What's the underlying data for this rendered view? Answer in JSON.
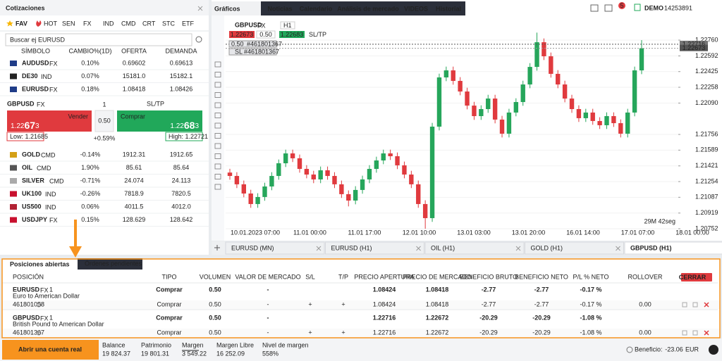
{
  "sidebar": {
    "title": "Cotizaciones",
    "tabs": [
      "FAV",
      "HOT",
      "SEN",
      "FX",
      "IND",
      "CMD",
      "CRT",
      "STC",
      "ETF"
    ],
    "search": "Buscar ej EURUSD",
    "columns": [
      "SÍMBOLO",
      "CAMBIO%(1D)",
      "OFERTA",
      "DEMANDA"
    ],
    "rows_top": [
      {
        "symbol": "AUDUSD",
        "market": "FX",
        "change": "0.10%",
        "bid": "0.69602",
        "ask": "0.69613"
      },
      {
        "symbol": "DE30",
        "market": "IND",
        "change": "0.07%",
        "bid": "15181.0",
        "ask": "15182.1"
      },
      {
        "symbol": "EURUSD",
        "market": "FX",
        "change": "0.18%",
        "bid": "1.08418",
        "ask": "1.08426"
      }
    ],
    "ticket": {
      "symbol": "GBPUSD",
      "market": "FX",
      "qty": "1",
      "sltp": "SL/TP",
      "sell_label": "Vender",
      "sell_price": [
        "1.22",
        "67",
        "3"
      ],
      "volume": "0.50",
      "buy_label": "Comprar",
      "buy_price": [
        "1.22",
        "68",
        "3"
      ],
      "change": "+0.59%",
      "low": "Low: 1.21685",
      "high": "High: 1.22721"
    },
    "rows_bottom": [
      {
        "symbol": "GOLD",
        "market": "CMD",
        "change": "-0.14%",
        "bid": "1912.31",
        "ask": "1912.65"
      },
      {
        "symbol": "OIL",
        "market": "CMD",
        "change": "1.90%",
        "bid": "85.61",
        "ask": "85.64"
      },
      {
        "symbol": "SILVER",
        "market": "CMD",
        "change": "-0.71%",
        "bid": "24.074",
        "ask": "24.113"
      },
      {
        "symbol": "UK100",
        "market": "IND",
        "change": "-0.26%",
        "bid": "7818.9",
        "ask": "7820.5"
      },
      {
        "symbol": "US500",
        "market": "IND",
        "change": "0.06%",
        "bid": "4011.5",
        "ask": "4012.0"
      },
      {
        "symbol": "USDJPY",
        "market": "FX",
        "change": "0.15%",
        "bid": "128.629",
        "ask": "128.642"
      }
    ]
  },
  "nav": {
    "charts": "Gráficos",
    "items": [
      "Noticias",
      "Calendario",
      "Análisis de mercado",
      "VIDEOS",
      "Historial"
    ],
    "badge": "5",
    "account_type": "DEMO",
    "account_id": "14253891"
  },
  "chart_data": {
    "type": "candlestick",
    "symbol": "GBPUSD",
    "market": "FX",
    "timeframe": "H1",
    "sell": "1.22673",
    "volume": "0.50",
    "buy": "1.22683",
    "sltp": "SL/TP",
    "order_volume": "0.50",
    "order_id": "#461801367",
    "sl_label": "SL",
    "sl_id": "#461801367",
    "timer": "29M 42seg",
    "up_color": "#26a65b",
    "down_color": "#e03a3e",
    "ylim": [
      1.2064,
      1.22925
    ],
    "yticks": [
      {
        "value": 1.2276,
        "label": "1.22760"
      },
      {
        "value": 1.22592,
        "label": "1.22592"
      },
      {
        "value": 1.22425,
        "label": "1.22425"
      },
      {
        "value": 1.22258,
        "label": "1.22258"
      },
      {
        "value": 1.2209,
        "label": "1.22090"
      },
      {
        "value": 1.21756,
        "label": "1.21756"
      },
      {
        "value": 1.21589,
        "label": "1.21589"
      },
      {
        "value": 1.21421,
        "label": "1.21421"
      },
      {
        "value": 1.21254,
        "label": "1.21254"
      },
      {
        "value": 1.21087,
        "label": "1.21087"
      },
      {
        "value": 1.20919,
        "label": "1.20919"
      },
      {
        "value": 1.20752,
        "label": "1.20752"
      }
    ],
    "open_price": {
      "value": 1.22716,
      "label": "1.22716"
    },
    "current_price": {
      "value": 1.22673,
      "label": "1.22673"
    },
    "xticks": [
      "10.01.2023 07:00",
      "11.01 00:00",
      "11.01 17:00",
      "12.01 10:00",
      "13.01 03:00",
      "13.01 20:00",
      "16.01 14:00",
      "17.01 07:00",
      "18.01 00:00"
    ],
    "candles": [
      [
        1.2135,
        1.2139,
        1.21274,
        1.21314
      ],
      [
        1.21314,
        1.21354,
        1.21185,
        1.21225
      ],
      [
        1.21225,
        1.21265,
        1.21087,
        1.21127
      ],
      [
        1.21127,
        1.21167,
        1.20975,
        1.21015
      ],
      [
        1.21015,
        1.2113,
        1.20975,
        1.2109
      ],
      [
        1.2109,
        1.21242,
        1.2105,
        1.21202
      ],
      [
        1.21202,
        1.21354,
        1.21162,
        1.21314
      ],
      [
        1.21314,
        1.21489,
        1.21274,
        1.21449
      ],
      [
        1.21449,
        1.21594,
        1.21409,
        1.21554
      ],
      [
        1.21554,
        1.21594,
        1.21462,
        1.21502
      ],
      [
        1.21502,
        1.21542,
        1.21349,
        1.21389
      ],
      [
        1.21389,
        1.21429,
        1.21289,
        1.21329
      ],
      [
        1.21329,
        1.21369,
        1.21237,
        1.21277
      ],
      [
        1.21277,
        1.21414,
        1.21237,
        1.21374
      ],
      [
        1.21374,
        1.21414,
        1.21274,
        1.21314
      ],
      [
        1.21314,
        1.21354,
        1.21185,
        1.21225
      ],
      [
        1.21225,
        1.21265,
        1.2108,
        1.2112
      ],
      [
        1.2112,
        1.2116,
        1.2099,
        1.21052
      ],
      [
        1.21052,
        1.21205,
        1.21012,
        1.21165
      ],
      [
        1.21165,
        1.21317,
        1.21125,
        1.21277
      ],
      [
        1.21277,
        1.21429,
        1.21237,
        1.21389
      ],
      [
        1.21389,
        1.21519,
        1.21349,
        1.21479
      ],
      [
        1.21479,
        1.21594,
        1.21439,
        1.21554
      ],
      [
        1.21554,
        1.21594,
        1.21484,
        1.21524
      ],
      [
        1.21524,
        1.21564,
        1.21387,
        1.21427
      ],
      [
        1.21427,
        1.21467,
        1.21289,
        1.21329
      ],
      [
        1.21329,
        1.21369,
        1.21185,
        1.21225
      ],
      [
        1.21225,
        1.21265,
        1.20975,
        1.21015
      ],
      [
        1.21015,
        1.21055,
        1.20752,
        1.20865
      ],
      [
        1.20865,
        1.21879,
        1.20825,
        1.21839
      ],
      [
        1.21839,
        1.22403,
        1.21799,
        1.22363
      ],
      [
        1.22363,
        1.22478,
        1.22323,
        1.22438
      ],
      [
        1.22438,
        1.22478,
        1.22286,
        1.22326
      ],
      [
        1.22326,
        1.22366,
        1.22173,
        1.22213
      ],
      [
        1.22213,
        1.22253,
        1.22023,
        1.22063
      ],
      [
        1.22063,
        1.22103,
        1.21911,
        1.21951
      ],
      [
        1.21951,
        1.22066,
        1.21911,
        1.22026
      ],
      [
        1.22026,
        1.22178,
        1.21986,
        1.22138
      ],
      [
        1.22138,
        1.22178,
        1.21874,
        1.21914
      ],
      [
        1.21914,
        1.21954,
        1.21724,
        1.21764
      ],
      [
        1.21764,
        1.22029,
        1.21724,
        1.21989
      ],
      [
        1.21989,
        1.22141,
        1.21949,
        1.22101
      ],
      [
        1.22101,
        1.22328,
        1.22061,
        1.22288
      ],
      [
        1.22288,
        1.22515,
        1.22248,
        1.22475
      ],
      [
        1.22475,
        1.2284,
        1.22435,
        1.22738
      ],
      [
        1.22738,
        1.22778,
        1.22548,
        1.22588
      ],
      [
        1.22588,
        1.22628,
        1.22361,
        1.22401
      ],
      [
        1.22401,
        1.22441,
        1.22248,
        1.22288
      ],
      [
        1.22288,
        1.22328,
        1.22098,
        1.22138
      ],
      [
        1.22138,
        1.22178,
        1.21986,
        1.22026
      ],
      [
        1.22026,
        1.22066,
        1.21889,
        1.21929
      ],
      [
        1.21929,
        1.22029,
        1.21889,
        1.21989
      ],
      [
        1.21989,
        1.22029,
        1.21859,
        1.21899
      ],
      [
        1.21899,
        1.21939,
        1.21814,
        1.21854
      ],
      [
        1.21854,
        1.21991,
        1.21814,
        1.21951
      ],
      [
        1.21951,
        1.21991,
        1.21836,
        1.21876
      ],
      [
        1.21876,
        1.21916,
        1.21724,
        1.21764
      ],
      [
        1.21764,
        1.22029,
        1.21724,
        1.21989
      ],
      [
        1.21989,
        1.22478,
        1.21949,
        1.22438
      ],
      [
        1.22438,
        1.2276,
        1.22398,
        1.22673
      ]
    ],
    "tabs": [
      "EURUSD (MN)",
      "EURUSD (H1)",
      "OIL (H1)",
      "GOLD (H1)",
      "GBPUSD (H1)"
    ]
  },
  "positions": {
    "tabs": [
      "Posiciones abiertas",
      "Órdenes pendientes"
    ],
    "columns": [
      "POSICIÓN",
      "TIPO",
      "VOLUMEN",
      "VALOR DE MERCADO",
      "S/L",
      "T/P",
      "PRECIO APERTURA",
      "PRECIO DE MERCADO",
      "BENEFICIO BRUTO",
      "BENEFICIO NETO",
      "P/L % NETO",
      "ROLLOVER"
    ],
    "close_button": "CERRAR",
    "rows": [
      {
        "symbol": "EURUSD",
        "market": "FX",
        "count": "1",
        "description": "Euro to American Dollar",
        "type": "Comprar",
        "volume": "0.50",
        "market_value": "-",
        "open": "1.08424",
        "price": "1.08418",
        "gross": "-2.77",
        "net": "-2.77",
        "pl": "-0.17 %",
        "sub": {
          "id": "461801058",
          "type": "Comprar",
          "volume": "0.50",
          "market_value": "-",
          "sl": "+",
          "tp": "+",
          "open": "1.08424",
          "price": "1.08418",
          "gross": "-2.77",
          "net": "-2.77",
          "pl": "-0.17 %",
          "rollover": "0.00"
        }
      },
      {
        "symbol": "GBPUSD",
        "market": "FX",
        "count": "1",
        "description": "British Pound to American Dollar",
        "type": "Comprar",
        "volume": "0.50",
        "market_value": "-",
        "open": "1.22716",
        "price": "1.22672",
        "gross": "-20.29",
        "net": "-20.29",
        "pl": "-1.08 %",
        "sub": {
          "id": "461801367",
          "type": "Comprar",
          "volume": "0.50",
          "market_value": "-",
          "sl": "+",
          "tp": "+",
          "open": "1.22716",
          "price": "1.22672",
          "gross": "-20.29",
          "net": "-20.29",
          "pl": "-1.08 %",
          "rollover": "0.00"
        }
      }
    ]
  },
  "footer": {
    "cta": "Abrir una cuenta real",
    "stats": [
      {
        "label": "Balance",
        "value": "19 824.37"
      },
      {
        "label": "Patrimonio",
        "value": "19 801.31"
      },
      {
        "label": "Margen",
        "value": "3 549.22"
      },
      {
        "label": "Margen Libre",
        "value": "16 252.09"
      },
      {
        "label": "Nivel de margen",
        "value": "558%"
      }
    ],
    "profit_label": "Beneficio:",
    "profit_value": "-23.06",
    "currency": "EUR",
    "help": "?"
  }
}
